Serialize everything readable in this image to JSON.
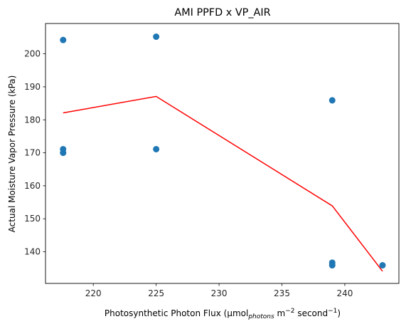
{
  "chart_data": {
    "type": "scatter",
    "title": "AMI PPFD x VP_AIR",
    "xlabel": {
      "main": "Photosynthetic Photon Flux (µmol",
      "sub": "photons",
      "mid": " m",
      "sup1": "−2",
      "mid2": " second",
      "sup2": "−1",
      "end": ")"
    },
    "ylabel": "Actual Moisture Vapor Pressure (kPa)",
    "xlim": [
      216.2,
      244.3
    ],
    "ylim": [
      130.4,
      209.2
    ],
    "xticks": [
      220,
      225,
      230,
      235,
      240
    ],
    "yticks": [
      140,
      150,
      160,
      170,
      180,
      190,
      200
    ],
    "grid": false,
    "scatter": {
      "color": "#1f77b4",
      "points": [
        {
          "x": 217.6,
          "y": 204.2
        },
        {
          "x": 217.6,
          "y": 171.1
        },
        {
          "x": 217.6,
          "y": 170.0
        },
        {
          "x": 225.0,
          "y": 205.2
        },
        {
          "x": 225.0,
          "y": 171.1
        },
        {
          "x": 239.0,
          "y": 185.9
        },
        {
          "x": 239.0,
          "y": 136.7
        },
        {
          "x": 239.0,
          "y": 135.9
        },
        {
          "x": 243.0,
          "y": 135.9
        }
      ]
    },
    "line": {
      "color": "#ff0000",
      "points": [
        {
          "x": 217.6,
          "y": 182.1
        },
        {
          "x": 225.0,
          "y": 187.1
        },
        {
          "x": 239.0,
          "y": 153.9
        },
        {
          "x": 243.0,
          "y": 134.1
        }
      ]
    }
  }
}
